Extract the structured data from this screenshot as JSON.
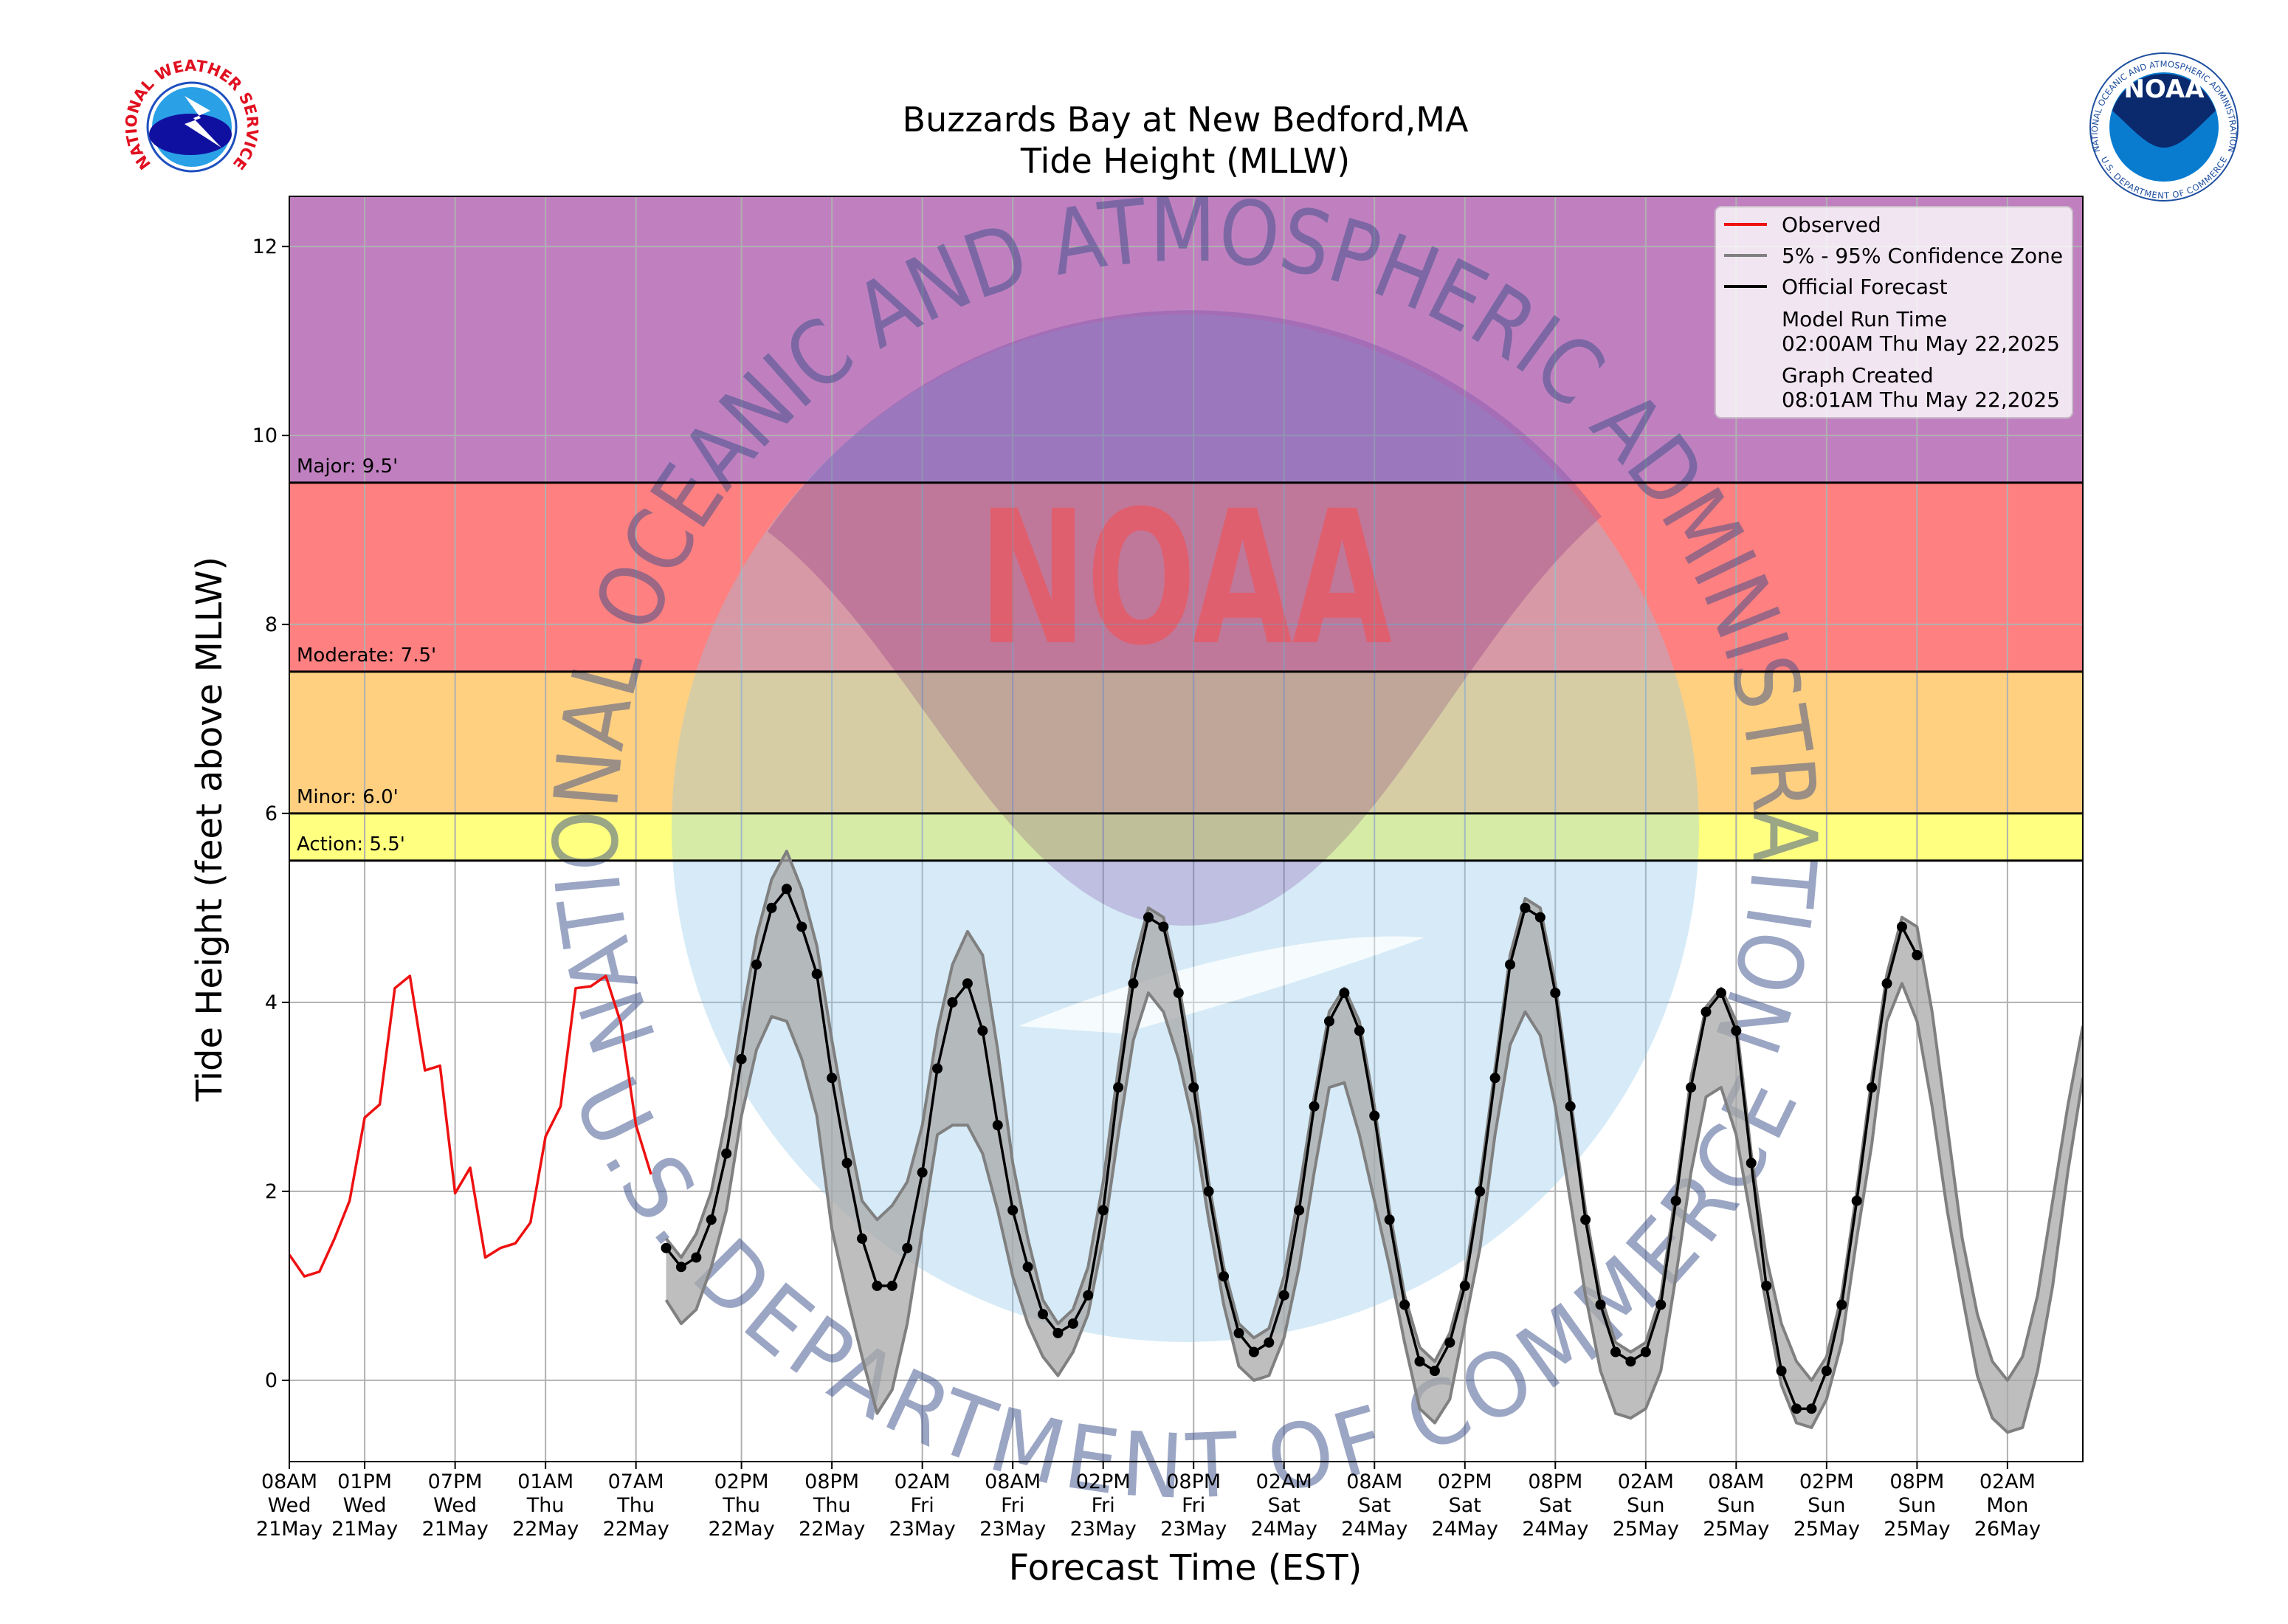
{
  "chart_data": {
    "type": "line",
    "title": [
      "Buzzards Bay at New Bedford,MA",
      "Tide Height (MLLW)"
    ],
    "y_label": "Tide Height (feet above MLLW)",
    "x_label": "Forecast Time (EST)",
    "xlim": [
      0,
      119
    ],
    "ylim": [
      -0.86,
      12.53
    ],
    "yticks": [
      0,
      2,
      4,
      6,
      8,
      10,
      12
    ],
    "xticks": [
      {
        "value": 0,
        "label": [
          "08AM",
          "Wed",
          "21May"
        ]
      },
      {
        "value": 5,
        "label": [
          "01PM",
          "Wed",
          "21May"
        ]
      },
      {
        "value": 11,
        "label": [
          "07PM",
          "Wed",
          "21May"
        ]
      },
      {
        "value": 17,
        "label": [
          "01AM",
          "Thu",
          "22May"
        ]
      },
      {
        "value": 23,
        "label": [
          "07AM",
          "Thu",
          "22May"
        ]
      },
      {
        "value": 30,
        "label": [
          "02PM",
          "Thu",
          "22May"
        ]
      },
      {
        "value": 36,
        "label": [
          "08PM",
          "Thu",
          "22May"
        ]
      },
      {
        "value": 42,
        "label": [
          "02AM",
          "Fri",
          "23May"
        ]
      },
      {
        "value": 48,
        "label": [
          "08AM",
          "Fri",
          "23May"
        ]
      },
      {
        "value": 54,
        "label": [
          "02PM",
          "Fri",
          "23May"
        ]
      },
      {
        "value": 60,
        "label": [
          "08PM",
          "Fri",
          "23May"
        ]
      },
      {
        "value": 66,
        "label": [
          "02AM",
          "Sat",
          "24May"
        ]
      },
      {
        "value": 72,
        "label": [
          "08AM",
          "Sat",
          "24May"
        ]
      },
      {
        "value": 78,
        "label": [
          "02PM",
          "Sat",
          "24May"
        ]
      },
      {
        "value": 84,
        "label": [
          "08PM",
          "Sat",
          "24May"
        ]
      },
      {
        "value": 90,
        "label": [
          "02AM",
          "Sun",
          "25May"
        ]
      },
      {
        "value": 96,
        "label": [
          "08AM",
          "Sun",
          "25May"
        ]
      },
      {
        "value": 102,
        "label": [
          "02PM",
          "Sun",
          "25May"
        ]
      },
      {
        "value": 108,
        "label": [
          "08PM",
          "Sun",
          "25May"
        ]
      },
      {
        "value": 114,
        "label": [
          "02AM",
          "Mon",
          "26May"
        ]
      }
    ],
    "grid": true,
    "legend": "upper right",
    "thresholds": [
      {
        "label": "Action: 5.5'",
        "value": 5.5,
        "color": "#ffff80"
      },
      {
        "label": "Minor: 6.0'",
        "value": 6.0,
        "color": "#ffd080"
      },
      {
        "label": "Moderate: 7.5'",
        "value": 7.5,
        "color": "#ff8080"
      },
      {
        "label": "Major: 9.5'",
        "value": 9.5,
        "color": "#c080c0"
      }
    ],
    "series": [
      {
        "name": "Observed",
        "color": "#ee1111",
        "x": [
          0,
          1,
          2,
          3,
          4,
          5,
          6,
          7,
          8,
          9,
          10,
          11,
          12,
          13,
          14,
          15,
          16,
          17,
          18,
          19,
          20,
          21,
          22,
          23,
          24
        ],
        "values": [
          1.33,
          1.1,
          1.15,
          1.5,
          1.9,
          2.78,
          2.92,
          4.15,
          4.28,
          3.28,
          3.33,
          1.98,
          2.25,
          1.3,
          1.4,
          1.45,
          1.67,
          2.58,
          2.9,
          4.15,
          4.17,
          4.28,
          3.78,
          2.7,
          2.18
        ]
      },
      {
        "name": "5% - 95% Confidence Zone",
        "color": "#808080",
        "fill": "#a8a8a8",
        "x": [
          25,
          26,
          27,
          28,
          29,
          30,
          31,
          32,
          33,
          34,
          35,
          36,
          37,
          38,
          39,
          40,
          41,
          42,
          43,
          44,
          45,
          46,
          47,
          48,
          49,
          50,
          51,
          52,
          53,
          54,
          55,
          56,
          57,
          58,
          59,
          60,
          61,
          62,
          63,
          64,
          65,
          66,
          67,
          68,
          69,
          70,
          71,
          72,
          73,
          74,
          75,
          76,
          77,
          78,
          79,
          80,
          81,
          82,
          83,
          84,
          85,
          86,
          87,
          88,
          89,
          90,
          91,
          92,
          93,
          94,
          95,
          96,
          97,
          98,
          99,
          100,
          101,
          102,
          103,
          104,
          105,
          106,
          107,
          108,
          109,
          110,
          111,
          112,
          113,
          114,
          115,
          116,
          117,
          118,
          119
        ],
        "upper": [
          1.5,
          1.3,
          1.55,
          2.0,
          2.8,
          3.8,
          4.7,
          5.3,
          5.6,
          5.2,
          4.6,
          3.6,
          2.7,
          1.9,
          1.7,
          1.85,
          2.1,
          2.7,
          3.7,
          4.4,
          4.75,
          4.5,
          3.5,
          2.3,
          1.5,
          0.85,
          0.6,
          0.75,
          1.2,
          2.1,
          3.3,
          4.4,
          5.0,
          4.9,
          4.2,
          3.3,
          2.1,
          1.2,
          0.6,
          0.45,
          0.55,
          1.1,
          2.0,
          3.0,
          3.9,
          4.15,
          3.8,
          2.9,
          1.8,
          0.9,
          0.35,
          0.2,
          0.5,
          1.1,
          2.1,
          3.3,
          4.5,
          5.1,
          5.0,
          4.2,
          3.0,
          1.8,
          0.9,
          0.4,
          0.3,
          0.4,
          0.9,
          2.0,
          3.2,
          3.95,
          4.15,
          3.8,
          2.4,
          1.3,
          0.6,
          0.2,
          0.0,
          0.25,
          0.9,
          2.0,
          3.2,
          4.3,
          4.9,
          4.8,
          3.9,
          2.7,
          1.5,
          0.7,
          0.2,
          0.0,
          0.25,
          0.9,
          1.9,
          2.9,
          3.75
        ],
        "lower": [
          0.85,
          0.6,
          0.75,
          1.2,
          1.8,
          2.8,
          3.5,
          3.85,
          3.8,
          3.4,
          2.8,
          1.6,
          0.9,
          0.25,
          -0.35,
          -0.1,
          0.6,
          1.6,
          2.6,
          2.7,
          2.7,
          2.4,
          1.8,
          1.1,
          0.6,
          0.25,
          0.05,
          0.3,
          0.7,
          1.5,
          2.6,
          3.6,
          4.1,
          3.9,
          3.4,
          2.7,
          1.7,
          0.8,
          0.15,
          0.0,
          0.05,
          0.45,
          1.2,
          2.2,
          3.1,
          3.15,
          2.6,
          1.9,
          1.2,
          0.4,
          -0.3,
          -0.45,
          -0.2,
          0.6,
          1.4,
          2.6,
          3.55,
          3.9,
          3.65,
          2.9,
          1.9,
          0.9,
          0.1,
          -0.35,
          -0.4,
          -0.3,
          0.1,
          1.1,
          2.2,
          3.0,
          3.1,
          2.6,
          1.7,
          0.8,
          -0.05,
          -0.45,
          -0.5,
          -0.2,
          0.4,
          1.5,
          2.5,
          3.8,
          4.2,
          3.8,
          2.9,
          1.8,
          0.9,
          0.05,
          -0.4,
          -0.55,
          -0.5,
          0.1,
          1.0,
          2.2,
          3.2
        ]
      },
      {
        "name": "Official Forecast",
        "color": "#000000",
        "markers": true,
        "x": [
          25,
          26,
          27,
          28,
          29,
          30,
          31,
          32,
          33,
          34,
          35,
          36,
          37,
          38,
          39,
          40,
          41,
          42,
          43,
          44,
          45,
          46,
          47,
          48,
          49,
          50,
          51,
          52,
          53,
          54,
          55,
          56,
          57,
          58,
          59,
          60,
          61,
          62,
          63,
          64,
          65,
          66,
          67,
          68,
          69,
          70,
          71,
          72,
          73,
          74,
          75,
          76,
          77,
          78,
          79,
          80,
          81,
          82,
          83,
          84,
          85,
          86,
          87,
          88,
          89,
          90,
          91,
          92,
          93,
          94,
          95,
          96,
          97,
          98,
          99,
          100,
          101,
          102,
          103,
          104,
          105,
          106,
          107,
          108
        ],
        "values": [
          1.4,
          1.2,
          1.3,
          1.7,
          2.4,
          3.4,
          4.4,
          5.0,
          5.2,
          4.8,
          4.3,
          3.2,
          2.3,
          1.5,
          1.0,
          1.0,
          1.4,
          2.2,
          3.3,
          4.0,
          4.2,
          3.7,
          2.7,
          1.8,
          1.2,
          0.7,
          0.5,
          0.6,
          0.9,
          1.8,
          3.1,
          4.2,
          4.9,
          4.8,
          4.1,
          3.1,
          2.0,
          1.1,
          0.5,
          0.3,
          0.4,
          0.9,
          1.8,
          2.9,
          3.8,
          4.1,
          3.7,
          2.8,
          1.7,
          0.8,
          0.2,
          0.1,
          0.4,
          1.0,
          2.0,
          3.2,
          4.4,
          5.0,
          4.9,
          4.1,
          2.9,
          1.7,
          0.8,
          0.3,
          0.2,
          0.3,
          0.8,
          1.9,
          3.1,
          3.9,
          4.1,
          3.7,
          2.3,
          1.0,
          0.1,
          -0.3,
          -0.3,
          0.1,
          0.8,
          1.9,
          3.1,
          4.2,
          4.8,
          4.5
        ]
      }
    ],
    "legend_notes": [
      "Model Run Time",
      "02:00AM Thu May 22,2025",
      "Graph Created",
      "08:01AM Thu May 22,2025"
    ],
    "watermark": {
      "ring_top": "NATIONAL OCEANIC AND ATMOSPHERIC ADMINISTRATION",
      "ring_bottom": "U.S. DEPARTMENT OF COMMERCE",
      "center": "NOAA"
    }
  },
  "logos": {
    "nws": "NATIONAL WEATHER SERVICE",
    "noaa_center": "NOAA",
    "noaa_ring_top": "NATIONAL OCEANIC AND ATMOSPHERIC ADMINISTRATION",
    "noaa_ring_bottom": "U.S. DEPARTMENT OF COMMERCE"
  }
}
